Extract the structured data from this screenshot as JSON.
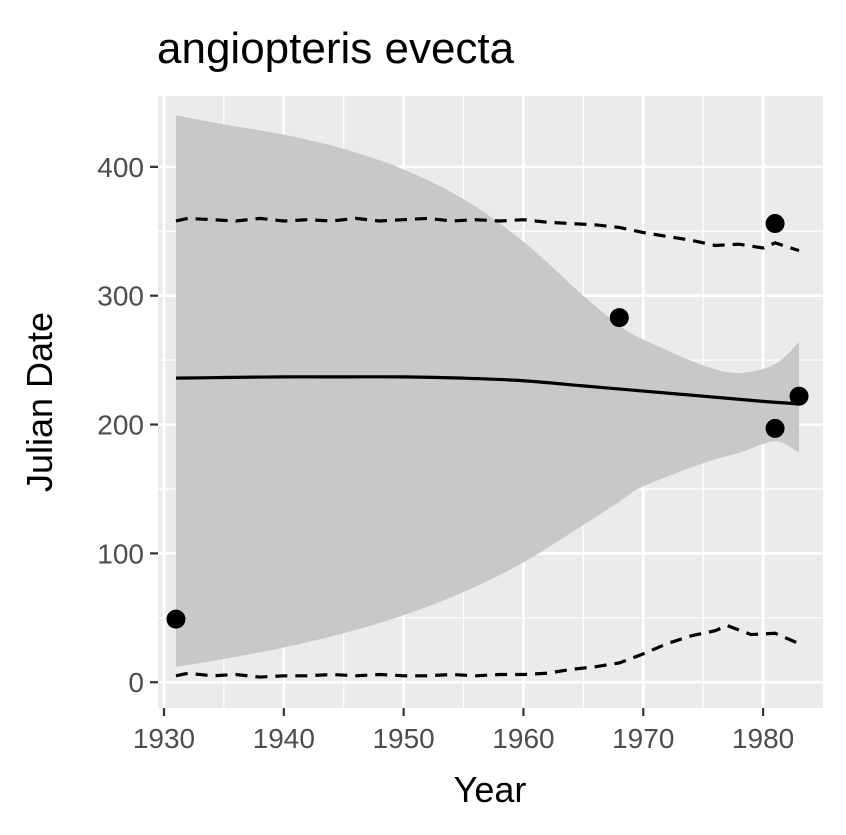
{
  "chart_data": {
    "type": "scatter",
    "title": "angiopteris evecta",
    "xlabel": "Year",
    "ylabel": "Julian Date",
    "xlim": [
      1929.5,
      1985
    ],
    "ylim": [
      -20,
      455
    ],
    "x_ticks": [
      1930,
      1940,
      1950,
      1960,
      1970,
      1980
    ],
    "y_ticks": [
      0,
      100,
      200,
      300,
      400
    ],
    "grid": true,
    "legend": "none",
    "colors": {
      "panel": "#ebebeb",
      "grid": "#ffffff",
      "ribbon": "#c8c8c8",
      "points": "#000000",
      "lines": "#000000",
      "ticks_text": "#4d4d4d"
    },
    "points": {
      "x": [
        1931,
        1968,
        1981,
        1981,
        1983
      ],
      "y": [
        49,
        283,
        356,
        197,
        222
      ]
    },
    "confidence_band": {
      "x": [
        1931,
        1935,
        1940,
        1945,
        1950,
        1955,
        1960,
        1965,
        1968,
        1970,
        1975,
        1978,
        1981,
        1983
      ],
      "lower": [
        12,
        18,
        27,
        38,
        52,
        70,
        93,
        122,
        140,
        152,
        170,
        178,
        187,
        178
      ],
      "upper": [
        440,
        433,
        425,
        414,
        398,
        375,
        342,
        300,
        277,
        266,
        246,
        240,
        247,
        264
      ]
    },
    "fit_line": {
      "x": [
        1931,
        1935,
        1940,
        1945,
        1950,
        1955,
        1960,
        1965,
        1970,
        1975,
        1980,
        1983
      ],
      "y": [
        236,
        236.5,
        237,
        237,
        237,
        236,
        234,
        230,
        226,
        222,
        218,
        216
      ]
    },
    "upper_quantile_line": {
      "x": [
        1931,
        1932,
        1934,
        1936,
        1938,
        1940,
        1942,
        1944,
        1946,
        1948,
        1950,
        1952,
        1954,
        1956,
        1958,
        1960,
        1962,
        1964,
        1966,
        1968,
        1970,
        1972,
        1974,
        1976,
        1978,
        1980,
        1981,
        1983
      ],
      "y": [
        358,
        360,
        359,
        358,
        360,
        358,
        359,
        358,
        360,
        358,
        359,
        360,
        358,
        359,
        358,
        359,
        357,
        356,
        355,
        353,
        349,
        346,
        343,
        339,
        340,
        337,
        341,
        335
      ]
    },
    "lower_quantile_line": {
      "x": [
        1931,
        1932,
        1934,
        1936,
        1938,
        1940,
        1942,
        1944,
        1946,
        1948,
        1950,
        1952,
        1954,
        1956,
        1958,
        1960,
        1962,
        1964,
        1966,
        1968,
        1970,
        1972,
        1974,
        1976,
        1977,
        1979,
        1981,
        1983
      ],
      "y": [
        5,
        7,
        5,
        6,
        4,
        5,
        5,
        6,
        5,
        6,
        5,
        5,
        6,
        5,
        6,
        6,
        7,
        10,
        12,
        15,
        22,
        30,
        36,
        40,
        44,
        37,
        38,
        30
      ]
    }
  }
}
